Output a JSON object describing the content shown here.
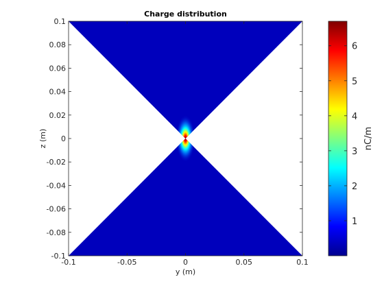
{
  "chart_data": {
    "type": "heatmap",
    "title": "Charge distribution",
    "xlabel": "y (m)",
    "ylabel": "z (m)",
    "xlim": [
      -0.1,
      0.1
    ],
    "ylim": [
      -0.1,
      0.1
    ],
    "x_ticks": [
      "-0.1",
      "-0.05",
      "0",
      "0.05",
      "0.1"
    ],
    "y_ticks": [
      "-0.1",
      "-0.08",
      "-0.06",
      "-0.04",
      "-0.02",
      "0",
      "0.02",
      "0.04",
      "0.06",
      "0.08",
      "0.1"
    ],
    "x_tick_values": [
      -0.1,
      -0.05,
      0,
      0.05,
      0.1
    ],
    "y_tick_values": [
      -0.1,
      -0.08,
      -0.06,
      -0.04,
      -0.02,
      0,
      0.02,
      0.04,
      0.06,
      0.08,
      0.1
    ],
    "colorbar": {
      "label": "nC/m",
      "range": [
        0,
        6.7
      ],
      "ticks": [
        "1",
        "2",
        "3",
        "4",
        "5",
        "6"
      ],
      "tick_values": [
        1,
        2,
        3,
        4,
        5,
        6
      ],
      "colormap": "jet"
    },
    "regions": [
      {
        "name": "upper cone",
        "vertices": [
          [
            -0.1,
            0.1
          ],
          [
            0.1,
            0.1
          ],
          [
            0,
            0
          ]
        ],
        "value": 0.4
      },
      {
        "name": "lower cone",
        "vertices": [
          [
            -0.1,
            -0.1
          ],
          [
            0.1,
            -0.1
          ],
          [
            0,
            0
          ]
        ],
        "value": 0.4
      }
    ],
    "peak": {
      "y": 0,
      "z": 0,
      "value": 6.7
    },
    "grid": false
  }
}
